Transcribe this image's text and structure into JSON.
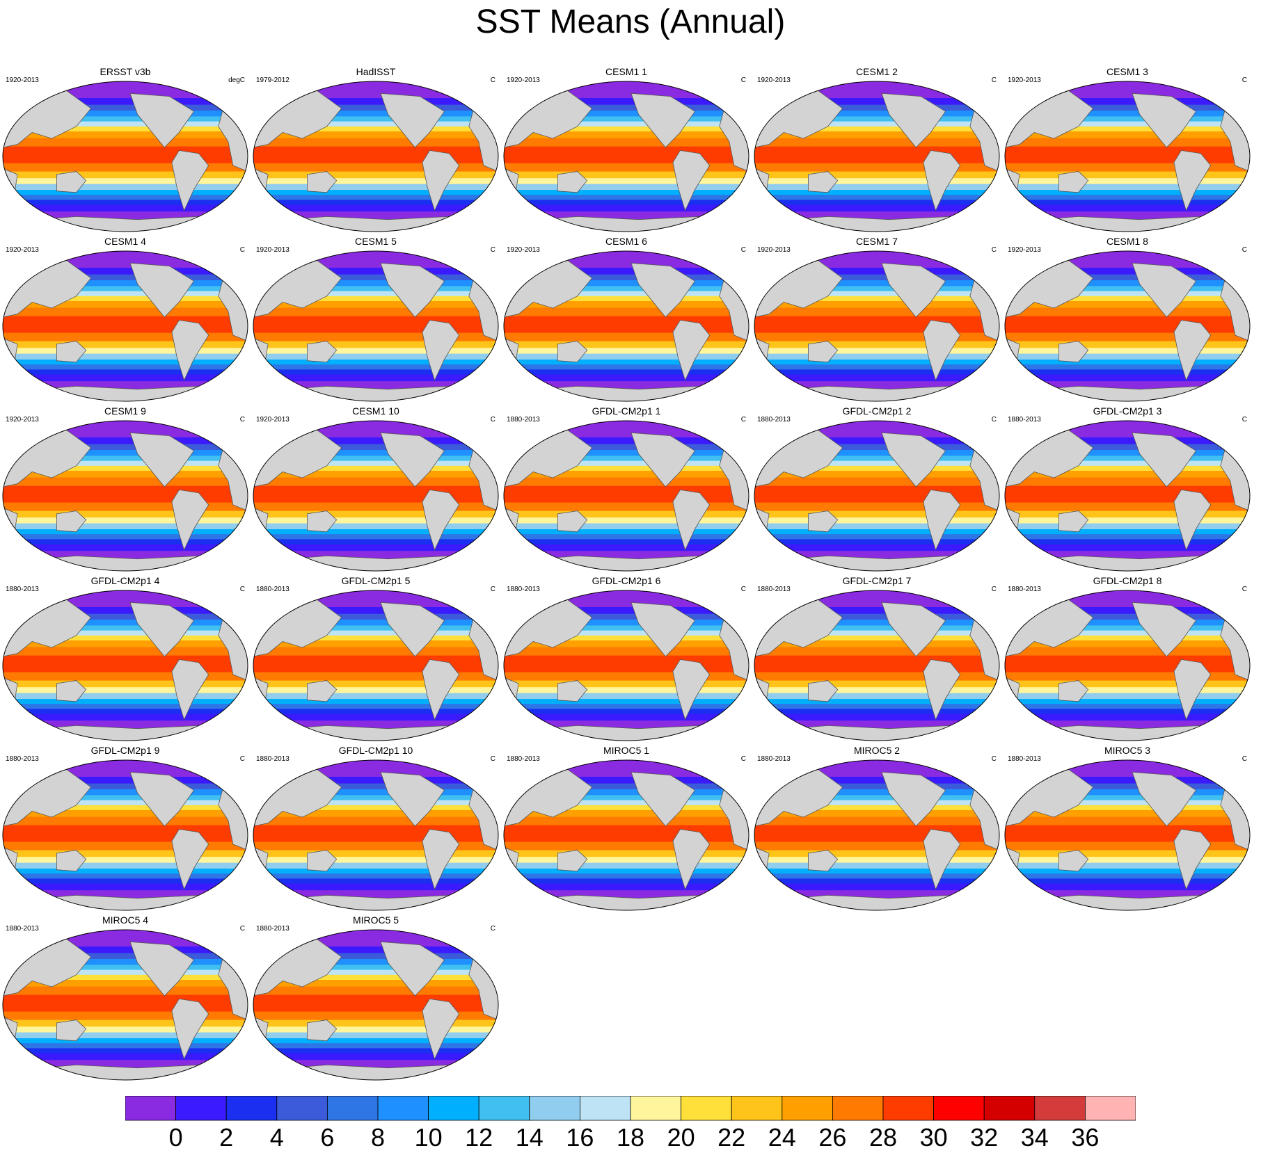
{
  "title": "SST Means (Annual)",
  "chart_data": {
    "type": "heatmap",
    "title": "SST Means (Annual)",
    "colorbar": {
      "levels": [
        0,
        2,
        4,
        6,
        8,
        10,
        12,
        14,
        16,
        18,
        20,
        22,
        24,
        26,
        28,
        30,
        32,
        34,
        36
      ],
      "tick_labels": [
        "0",
        "2",
        "4",
        "6",
        "8",
        "10",
        "12",
        "14",
        "16",
        "18",
        "20",
        "22",
        "24",
        "26",
        "28",
        "30",
        "32",
        "34",
        "36"
      ],
      "colors": [
        "#8a2be2",
        "#3b1aff",
        "#1a2ff0",
        "#3b5bdb",
        "#2e75e6",
        "#1e90ff",
        "#00b0ff",
        "#40c0f0",
        "#90cdee",
        "#bde3f5",
        "#fff59d",
        "#ffe03a",
        "#ffc41a",
        "#ff9f00",
        "#ff7a00",
        "#ff3c00",
        "#ff0000",
        "#d40000",
        "#d43c3c",
        "#ffb3b3"
      ]
    },
    "land_color": "#d3d3d3",
    "panels": [
      {
        "name": "ERSST v3b",
        "period": "1920-2013",
        "units": "degC"
      },
      {
        "name": "HadISST",
        "period": "1979-2012",
        "units": "C"
      },
      {
        "name": "CESM1 1",
        "period": "1920-2013",
        "units": "C"
      },
      {
        "name": "CESM1 2",
        "period": "1920-2013",
        "units": "C"
      },
      {
        "name": "CESM1 3",
        "period": "1920-2013",
        "units": "C"
      },
      {
        "name": "CESM1 4",
        "period": "1920-2013",
        "units": "C"
      },
      {
        "name": "CESM1 5",
        "period": "1920-2013",
        "units": "C"
      },
      {
        "name": "CESM1 6",
        "period": "1920-2013",
        "units": "C"
      },
      {
        "name": "CESM1 7",
        "period": "1920-2013",
        "units": "C"
      },
      {
        "name": "CESM1 8",
        "period": "1920-2013",
        "units": "C"
      },
      {
        "name": "CESM1 9",
        "period": "1920-2013",
        "units": "C"
      },
      {
        "name": "CESM1 10",
        "period": "1920-2013",
        "units": "C"
      },
      {
        "name": "GFDL-CM2p1 1",
        "period": "1880-2013",
        "units": "C"
      },
      {
        "name": "GFDL-CM2p1 2",
        "period": "1880-2013",
        "units": "C"
      },
      {
        "name": "GFDL-CM2p1 3",
        "period": "1880-2013",
        "units": "C"
      },
      {
        "name": "GFDL-CM2p1 4",
        "period": "1880-2013",
        "units": "C"
      },
      {
        "name": "GFDL-CM2p1 5",
        "period": "1880-2013",
        "units": "C"
      },
      {
        "name": "GFDL-CM2p1 6",
        "period": "1880-2013",
        "units": "C"
      },
      {
        "name": "GFDL-CM2p1 7",
        "period": "1880-2013",
        "units": "C"
      },
      {
        "name": "GFDL-CM2p1 8",
        "period": "1880-2013",
        "units": "C"
      },
      {
        "name": "GFDL-CM2p1 9",
        "period": "1880-2013",
        "units": "C"
      },
      {
        "name": "GFDL-CM2p1 10",
        "period": "1880-2013",
        "units": "C"
      },
      {
        "name": "MIROC5 1",
        "period": "1880-2013",
        "units": "C"
      },
      {
        "name": "MIROC5 2",
        "period": "1880-2013",
        "units": "C"
      },
      {
        "name": "MIROC5 3",
        "period": "1880-2013",
        "units": "C"
      },
      {
        "name": "MIROC5 4",
        "period": "1880-2013",
        "units": "C"
      },
      {
        "name": "MIROC5 5",
        "period": "1880-2013",
        "units": "C"
      }
    ]
  }
}
